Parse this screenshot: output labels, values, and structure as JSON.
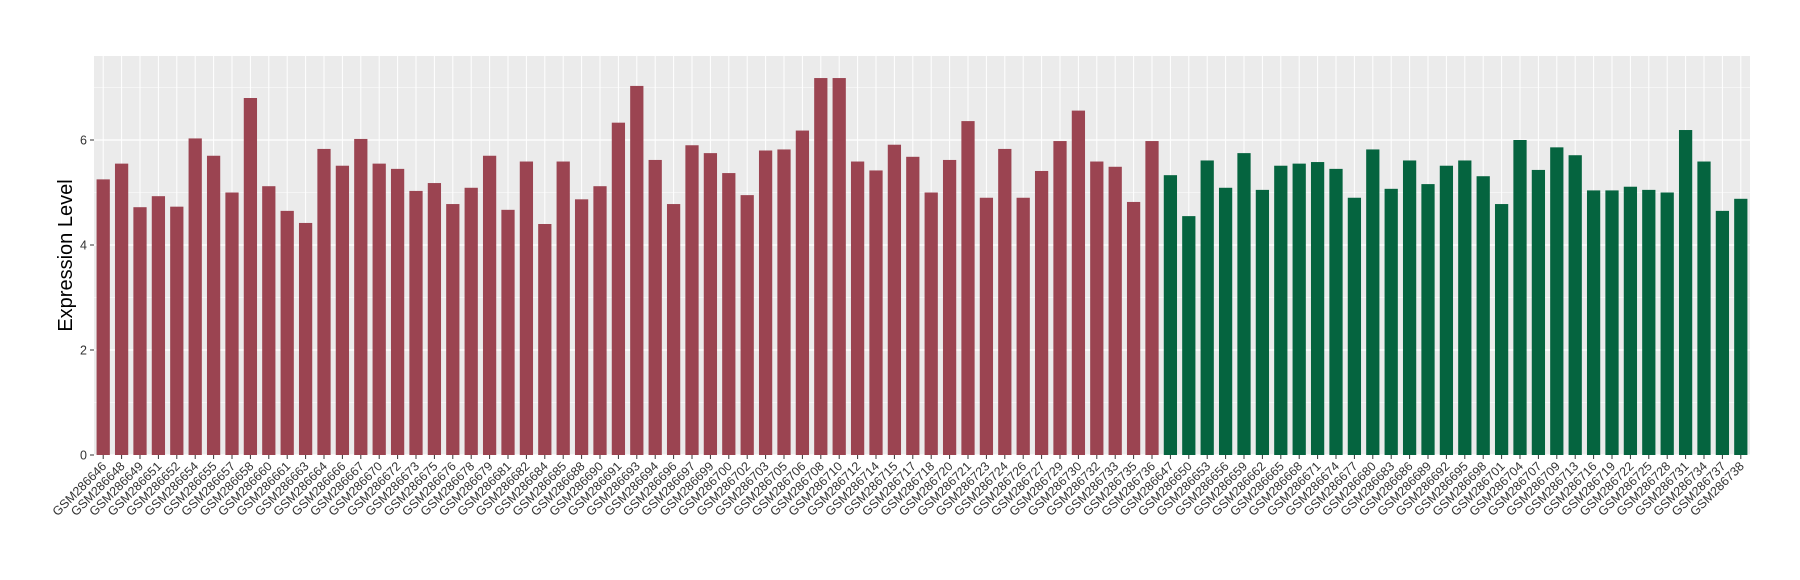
{
  "chart_data": {
    "type": "bar",
    "title": "",
    "xlabel": "",
    "ylabel": "Expression Level",
    "ylim": [
      0,
      7.6
    ],
    "yticks": [
      0,
      2,
      4,
      6
    ],
    "grid": true,
    "legend": "none",
    "colors": {
      "group1": "#9B4451",
      "group2": "#05643F",
      "panel": "#EBEBEB",
      "gridline": "#FFFFFF",
      "tick_text": "#333333"
    },
    "categories": [
      "GSM286646",
      "GSM286648",
      "GSM286649",
      "GSM286651",
      "GSM286652",
      "GSM286654",
      "GSM286655",
      "GSM286657",
      "GSM286658",
      "GSM286660",
      "GSM286661",
      "GSM286663",
      "GSM286664",
      "GSM286666",
      "GSM286667",
      "GSM286670",
      "GSM286672",
      "GSM286673",
      "GSM286675",
      "GSM286676",
      "GSM286678",
      "GSM286679",
      "GSM286681",
      "GSM286682",
      "GSM286684",
      "GSM286685",
      "GSM286688",
      "GSM286690",
      "GSM286691",
      "GSM286693",
      "GSM286694",
      "GSM286696",
      "GSM286697",
      "GSM286699",
      "GSM286700",
      "GSM286702",
      "GSM286703",
      "GSM286705",
      "GSM286706",
      "GSM286708",
      "GSM286710",
      "GSM286712",
      "GSM286714",
      "GSM286715",
      "GSM286717",
      "GSM286718",
      "GSM286720",
      "GSM286721",
      "GSM286723",
      "GSM286724",
      "GSM286726",
      "GSM286727",
      "GSM286729",
      "GSM286730",
      "GSM286732",
      "GSM286733",
      "GSM286735",
      "GSM286736",
      "GSM286647",
      "GSM286650",
      "GSM286653",
      "GSM286656",
      "GSM286659",
      "GSM286662",
      "GSM286665",
      "GSM286668",
      "GSM286671",
      "GSM286674",
      "GSM286677",
      "GSM286680",
      "GSM286683",
      "GSM286686",
      "GSM286689",
      "GSM286692",
      "GSM286695",
      "GSM286698",
      "GSM286701",
      "GSM286704",
      "GSM286707",
      "GSM286709",
      "GSM286713",
      "GSM286716",
      "GSM286719",
      "GSM286722",
      "GSM286725",
      "GSM286728",
      "GSM286731",
      "GSM286734",
      "GSM286737",
      "GSM286738"
    ],
    "values": [
      5.25,
      5.55,
      4.72,
      4.93,
      4.73,
      6.03,
      5.7,
      5.0,
      6.8,
      5.12,
      4.65,
      4.42,
      5.83,
      5.51,
      6.02,
      5.55,
      5.45,
      5.03,
      5.18,
      4.78,
      5.09,
      5.7,
      4.67,
      5.59,
      4.4,
      5.59,
      4.87,
      5.12,
      6.33,
      7.03,
      5.62,
      4.78,
      5.9,
      5.75,
      5.37,
      4.95,
      5.8,
      5.82,
      6.18,
      7.18,
      7.18,
      5.59,
      5.42,
      5.91,
      5.68,
      5.0,
      5.62,
      6.36,
      4.9,
      5.83,
      4.9,
      5.41,
      5.98,
      6.56,
      5.59,
      5.49,
      4.82,
      5.98,
      5.33,
      4.55,
      5.61,
      5.09,
      5.75,
      5.05,
      5.51,
      5.55,
      5.58,
      5.45,
      4.9,
      5.82,
      5.07,
      5.61,
      5.16,
      5.51,
      5.61,
      5.31,
      4.78,
      6.0,
      5.43,
      5.86,
      5.71,
      5.04,
      5.04,
      5.11,
      5.05,
      5.0,
      6.19,
      5.59,
      4.65,
      4.88
    ],
    "groups": [
      1,
      1,
      1,
      1,
      1,
      1,
      1,
      1,
      1,
      1,
      1,
      1,
      1,
      1,
      1,
      1,
      1,
      1,
      1,
      1,
      1,
      1,
      1,
      1,
      1,
      1,
      1,
      1,
      1,
      1,
      1,
      1,
      1,
      1,
      1,
      1,
      1,
      1,
      1,
      1,
      1,
      1,
      1,
      1,
      1,
      1,
      1,
      1,
      1,
      1,
      1,
      1,
      1,
      1,
      1,
      1,
      1,
      1,
      2,
      2,
      2,
      2,
      2,
      2,
      2,
      2,
      2,
      2,
      2,
      2,
      2,
      2,
      2,
      2,
      2,
      2,
      2,
      2,
      2,
      2,
      2,
      2,
      2,
      2,
      2,
      2,
      2,
      2,
      2,
      2
    ]
  }
}
